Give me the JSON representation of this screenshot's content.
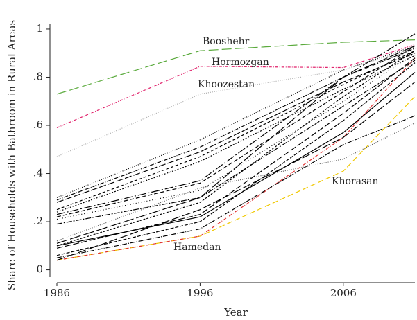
{
  "chart_data": {
    "type": "line",
    "xlabel": "Year",
    "ylabel": "Share of Households with Bathroom in Rural Areas",
    "x": [
      1986,
      1996,
      2006,
      2011
    ],
    "xlim": [
      1986,
      2011
    ],
    "xticks": [
      1986,
      1996,
      2006
    ],
    "ylim": [
      -0.03,
      1.02
    ],
    "yticks": [
      {
        "value": 0,
        "label": "0"
      },
      {
        "value": 0.2,
        "label": ".2"
      },
      {
        "value": 0.4,
        "label": ".4"
      },
      {
        "value": 0.6,
        "label": ".6"
      },
      {
        "value": 0.8,
        "label": ".8"
      },
      {
        "value": 1,
        "label": "1"
      }
    ],
    "grid": false,
    "series": [
      {
        "name": "Booshehr",
        "color": "#5aaa3c",
        "dash": "14,5",
        "values": [
          0.73,
          0.91,
          0.945,
          0.955
        ]
      },
      {
        "name": "Hormozgan",
        "color": "#e0206a",
        "dash": "4,2,1,2",
        "values": [
          0.59,
          0.845,
          0.84,
          0.935
        ]
      },
      {
        "name": "Khoozestan",
        "color": "#aaaaaa",
        "dash": "1,2",
        "values": [
          0.47,
          0.73,
          0.83,
          0.92
        ]
      },
      {
        "name": "Khorasan",
        "color": "#f0c800",
        "dash": "8,4",
        "values": [
          0.04,
          0.14,
          0.41,
          0.72
        ]
      },
      {
        "name": "Hamedan",
        "color": "#e03030",
        "dash": "5,2,1,2",
        "values": [
          0.04,
          0.14,
          0.55,
          0.88
        ]
      },
      {
        "color": "#000000",
        "dash": "1,2",
        "values": [
          0.3,
          0.54,
          0.83,
          0.93
        ]
      },
      {
        "color": "#000000",
        "dash": "6,2,1,2",
        "values": [
          0.29,
          0.51,
          0.8,
          0.92
        ]
      },
      {
        "color": "#000000",
        "dash": "10,3",
        "values": [
          0.28,
          0.49,
          0.78,
          0.9
        ]
      },
      {
        "color": "#000000",
        "dash": "4,3",
        "values": [
          0.25,
          0.47,
          0.77,
          0.91
        ]
      },
      {
        "color": "#000000",
        "dash": "2,2",
        "values": [
          0.24,
          0.45,
          0.75,
          0.89
        ]
      },
      {
        "color": "#000000",
        "dash": "12,3,2,3",
        "values": [
          0.23,
          0.37,
          0.8,
          0.98
        ]
      },
      {
        "color": "#000000",
        "dash": "6,3",
        "values": [
          0.22,
          0.36,
          0.74,
          0.93
        ]
      },
      {
        "color": "#000000",
        "dash": "1,3",
        "values": [
          0.21,
          0.33,
          0.7,
          0.9
        ]
      },
      {
        "color": "#000000",
        "dash": "8,2,2,2",
        "values": [
          0.19,
          0.3,
          0.68,
          0.87
        ]
      },
      {
        "color": "#000000",
        "dash": "16,4",
        "values": [
          0.11,
          0.3,
          0.8,
          0.93
        ]
      },
      {
        "color": "#000000",
        "dash": "3,2",
        "values": [
          0.1,
          0.28,
          0.72,
          0.91
        ]
      },
      {
        "color": "#000000",
        "dash": "",
        "values": [
          0.1,
          0.22,
          0.57,
          0.82
        ]
      },
      {
        "color": "#000000",
        "dash": "9,3",
        "values": [
          0.09,
          0.23,
          0.65,
          0.88
        ]
      },
      {
        "color": "#000000",
        "dash": "5,2",
        "values": [
          0.06,
          0.2,
          0.62,
          0.86
        ]
      },
      {
        "color": "#000000",
        "dash": "7,2,1,2",
        "values": [
          0.05,
          0.17,
          0.52,
          0.64
        ]
      },
      {
        "color": "#555555",
        "dash": "1,2",
        "values": [
          0.12,
          0.34,
          0.46,
          0.61
        ]
      },
      {
        "color": "#000000",
        "dash": "12,4",
        "values": [
          0.04,
          0.25,
          0.55,
          0.78
        ]
      }
    ]
  }
}
